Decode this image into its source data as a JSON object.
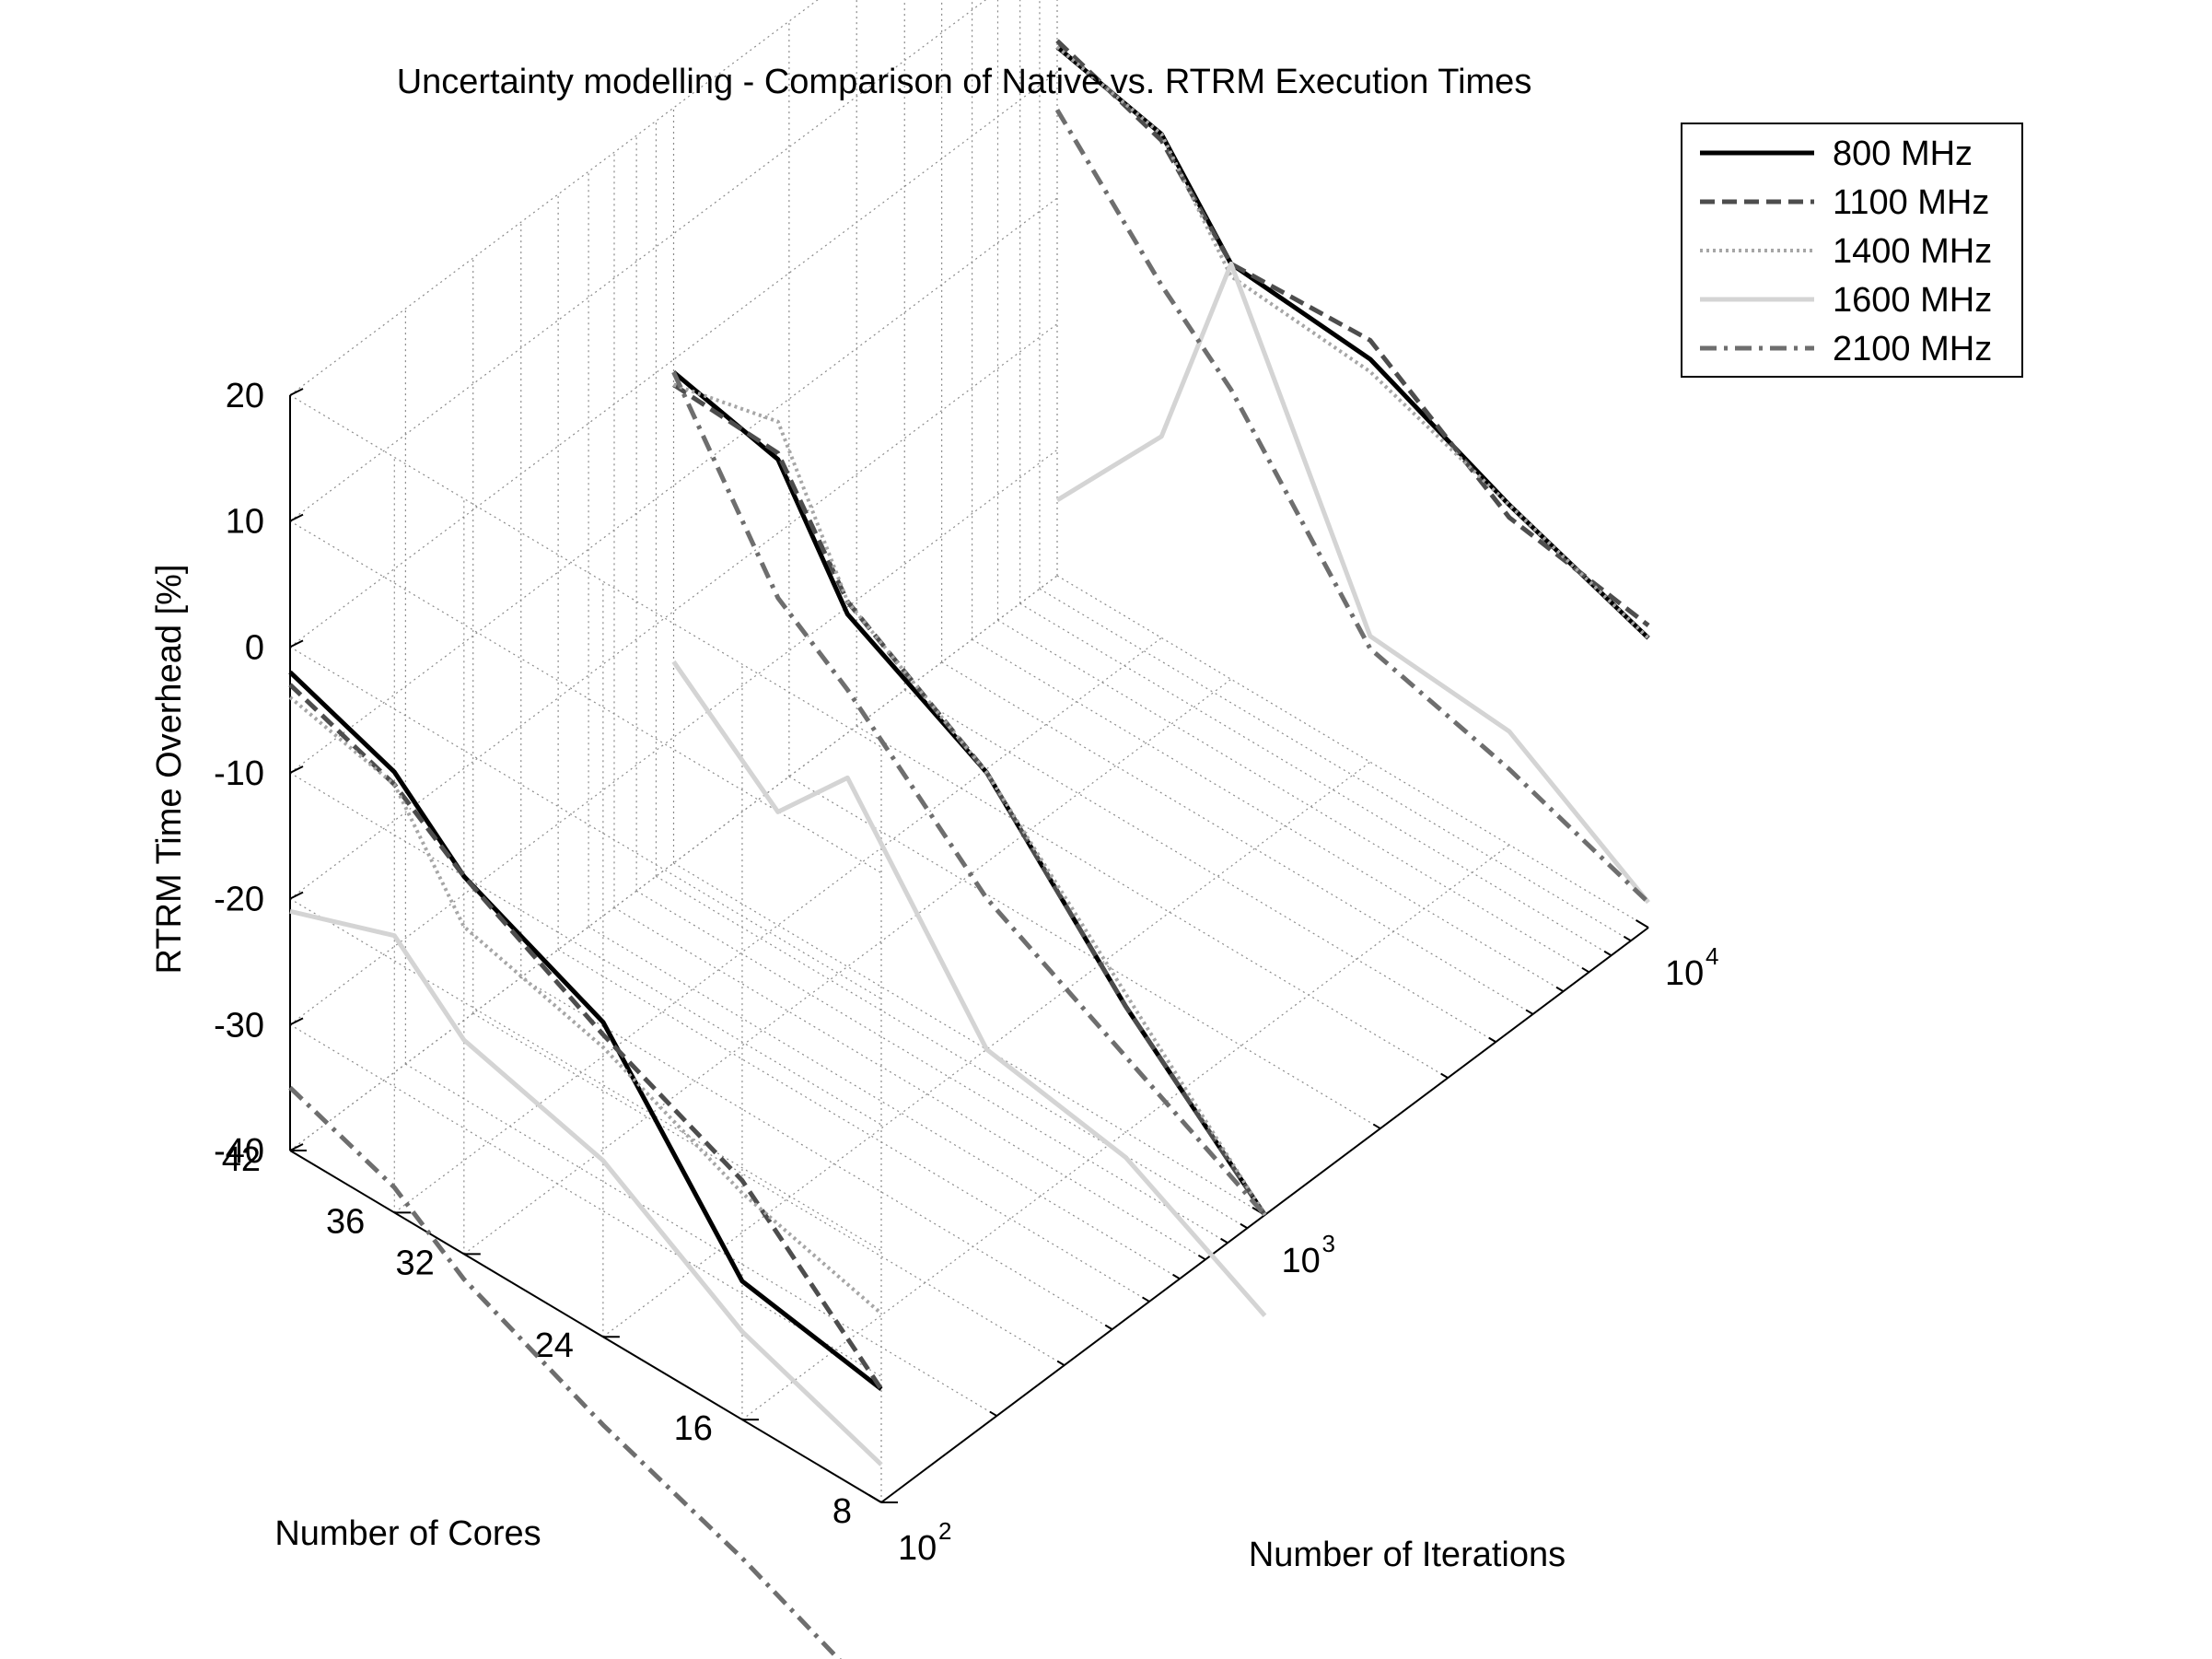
{
  "chart_data": {
    "type": "line",
    "title": "Uncertainty modelling - Comparison of Native vs. RTRM Execution Times",
    "zlabel": "RTRM Time Overhead [%]",
    "ylabel": "Number of Cores",
    "xlabel": "Number of Iterations",
    "x_scale": "log",
    "xlim": [
      100,
      10000
    ],
    "ylim": [
      8,
      42
    ],
    "zlim": [
      -40,
      20
    ],
    "grid": true,
    "legend_position": "top-right",
    "x_ticks": [
      100,
      1000,
      10000
    ],
    "x_tick_labels": [
      {
        "base": "10",
        "exp": "2"
      },
      {
        "base": "10",
        "exp": "3"
      },
      {
        "base": "10",
        "exp": "4"
      }
    ],
    "y_ticks": [
      8,
      16,
      24,
      32,
      36,
      42
    ],
    "y_tick_labels": [
      "8",
      "16",
      "24",
      "32",
      "36",
      "42"
    ],
    "z_ticks": [
      -40,
      -30,
      -20,
      -10,
      0,
      10,
      20
    ],
    "z_tick_labels": [
      "-40",
      "-30",
      "-20",
      "-10",
      "0",
      "10",
      "20"
    ],
    "cores": [
      42,
      36,
      32,
      24,
      16,
      8
    ],
    "iterations": [
      100,
      1000,
      10000
    ],
    "series": [
      {
        "name": "800 MHz",
        "color": "#000000",
        "dash": "solid",
        "values_by_iterations": {
          "100": [
            -2,
            -5,
            -10,
            -15,
            -29,
            -31
          ],
          "1000": [
            -1,
            -3,
            -12,
            -18,
            -30,
            -40
          ],
          "10000": [
            2,
            0,
            -7,
            -8,
            -13,
            -17
          ]
        }
      },
      {
        "name": "1100 MHz",
        "color": "#4d4d4d",
        "dash": "dashed",
        "values_by_iterations": {
          "100": [
            -3,
            -6,
            -10,
            -16,
            -21,
            -31
          ],
          "1000": [
            -2,
            -2.5,
            -11,
            -18,
            -30,
            -40
          ],
          "10000": [
            2.5,
            -0.5,
            -7,
            -6.5,
            -14,
            -16
          ]
        }
      },
      {
        "name": "1400 MHz",
        "color": "#a6a6a6",
        "dash": "dotted",
        "values_by_iterations": {
          "100": [
            -4,
            -6,
            -14,
            -17,
            -22,
            -25
          ],
          "1000": [
            -2,
            0,
            -11,
            -18,
            -29,
            -40
          ],
          "10000": [
            2,
            0,
            -8,
            -9,
            -13,
            -17
          ]
        }
      },
      {
        "name": "1600 MHz",
        "color": "#d4d4d4",
        "dash": "solid",
        "values_by_iterations": {
          "100": [
            -21,
            -18,
            -23,
            -26,
            -33,
            -37
          ],
          "1000": [
            -24,
            -31,
            -25,
            -40,
            -42,
            -48
          ],
          "10000": [
            -34,
            -24,
            -7,
            -30,
            -31,
            -38
          ]
        }
      },
      {
        "name": "2100 MHz",
        "color": "#6e6e6e",
        "dash": "dash-dot",
        "values_by_iterations": {
          "100": [
            -35,
            -38,
            -42,
            -47,
            -51,
            -56
          ],
          "1000": [
            -1,
            -14,
            -18,
            -28,
            -34,
            -40
          ],
          "10000": [
            -3,
            -12,
            -17,
            -31,
            -34,
            -38
          ]
        }
      }
    ]
  }
}
